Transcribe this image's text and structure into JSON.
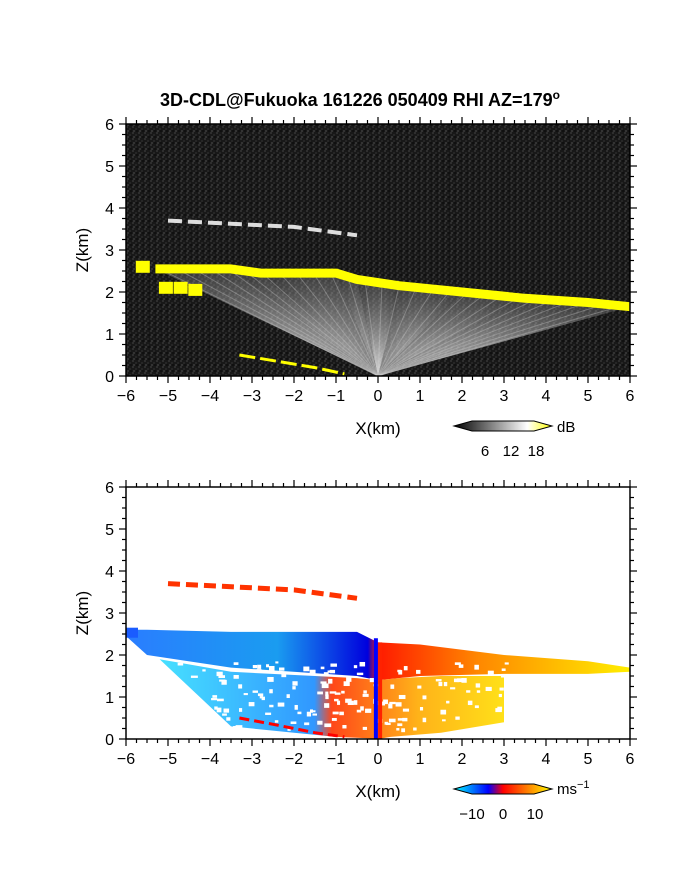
{
  "title": "3D-CDL@Fukuoka 161226 050409 RHI AZ=179",
  "title_superscript": "o",
  "chart_data": [
    {
      "type": "heatmap",
      "name": "backscatter",
      "xlabel": "X(km)",
      "ylabel": "Z(km)",
      "xlim": [
        -6,
        6
      ],
      "ylim": [
        0,
        6
      ],
      "xticks": [
        "-6",
        "-5",
        "-4",
        "-3",
        "-2",
        "-1",
        "0",
        "1",
        "2",
        "3",
        "4",
        "5",
        "6"
      ],
      "yticks": [
        "0",
        "1",
        "2",
        "3",
        "4",
        "5",
        "6"
      ],
      "colorbar": {
        "unit": "dB",
        "ticks": [
          "6",
          "12",
          "18"
        ],
        "colors": [
          "#000000",
          "#ffffff",
          "#ffff00"
        ]
      },
      "background_color": "#1a1a1a",
      "features": [
        {
          "label": "cloud base",
          "color": "#ffff00",
          "x": [
            -5.3,
            -3.5,
            -2.8,
            -1.0,
            -0.5,
            0.5,
            2.0,
            3.5,
            5.0,
            6.0
          ],
          "z": [
            2.55,
            2.55,
            2.45,
            2.45,
            2.3,
            2.15,
            2.0,
            1.85,
            1.75,
            1.65
          ]
        },
        {
          "label": "upper layer",
          "color": "#dddddd",
          "x": [
            -5.0,
            -2.0,
            -0.5
          ],
          "z": [
            3.7,
            3.55,
            3.35
          ]
        },
        {
          "label": "near-surface return",
          "color": "#ffff00",
          "x": [
            -3.3,
            -1.5,
            -0.8
          ],
          "z": [
            0.5,
            0.2,
            0.05
          ]
        }
      ]
    },
    {
      "type": "heatmap",
      "name": "doppler_velocity",
      "xlabel": "X(km)",
      "ylabel": "Z(km)",
      "xlim": [
        -6,
        6
      ],
      "ylim": [
        0,
        6
      ],
      "xticks": [
        "-6",
        "-5",
        "-4",
        "-3",
        "-2",
        "-1",
        "0",
        "1",
        "2",
        "3",
        "4",
        "5",
        "6"
      ],
      "yticks": [
        "0",
        "1",
        "2",
        "3",
        "4",
        "5",
        "6"
      ],
      "colorbar": {
        "unit": "ms",
        "unit_superscript": "−1",
        "ticks": [
          "−10",
          "0",
          "10"
        ],
        "colors": [
          "#00ffff",
          "#0000ff",
          "#ff0000",
          "#ffff00"
        ]
      },
      "background_color": "#ffffff",
      "features": [
        {
          "label": "approaching (negative)",
          "x_range": [
            -6.0,
            0.0
          ],
          "color": "#1e6cff"
        },
        {
          "label": "receding (positive)",
          "x_range": [
            0.0,
            6.0
          ],
          "color": "#ff8800"
        },
        {
          "label": "upper layer",
          "color": "#ff3300",
          "x": [
            -5.0,
            -2.0,
            -0.5
          ],
          "z": [
            3.7,
            3.55,
            3.35
          ]
        }
      ]
    }
  ]
}
